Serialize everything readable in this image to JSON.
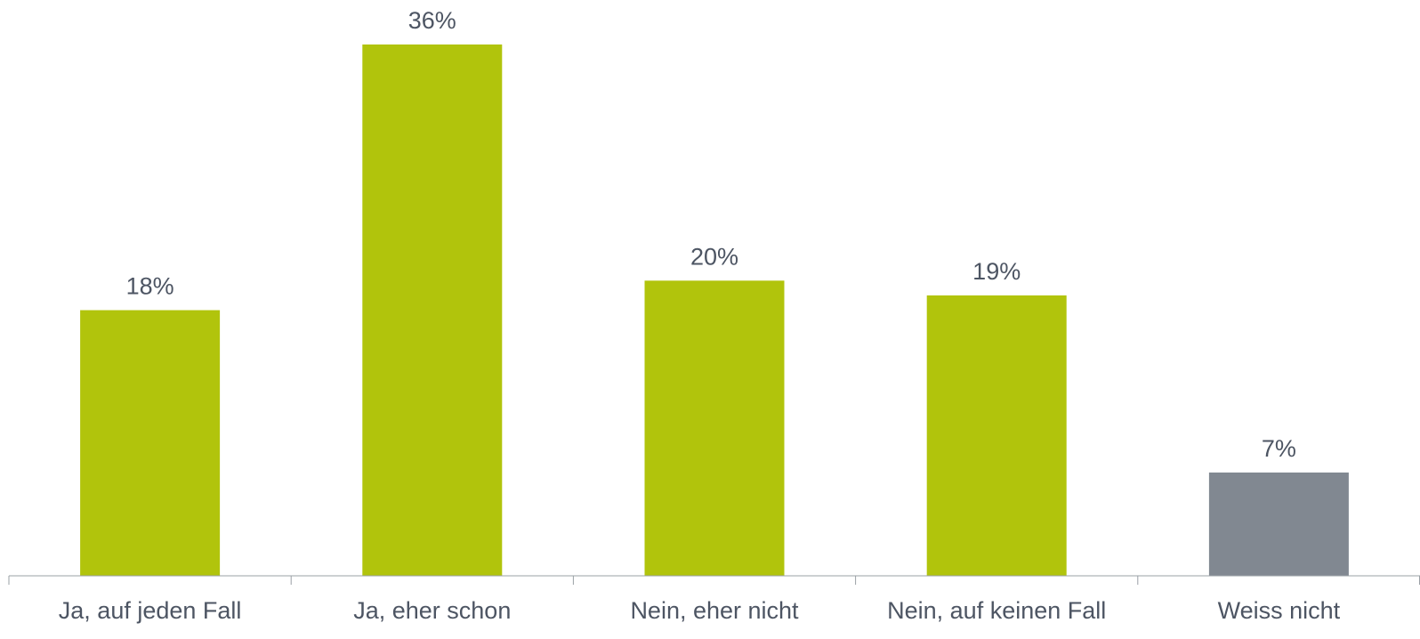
{
  "chart_data": {
    "type": "bar",
    "categories": [
      "Ja, auf jeden Fall",
      "Ja, eher schon",
      "Nein, eher nicht",
      "Nein, auf keinen Fall",
      "Weiss nicht"
    ],
    "values": [
      18,
      36,
      20,
      19,
      7
    ],
    "data_labels": [
      "18%",
      "36%",
      "20%",
      "19%",
      "7%"
    ],
    "unit": "%",
    "ylim": [
      0,
      36
    ],
    "grid": false,
    "colors": [
      "#b1c40c",
      "#b1c40c",
      "#b1c40c",
      "#b1c40c",
      "#818891"
    ],
    "axis_color": "#9aa0a6",
    "label_color": "#4d5563"
  }
}
